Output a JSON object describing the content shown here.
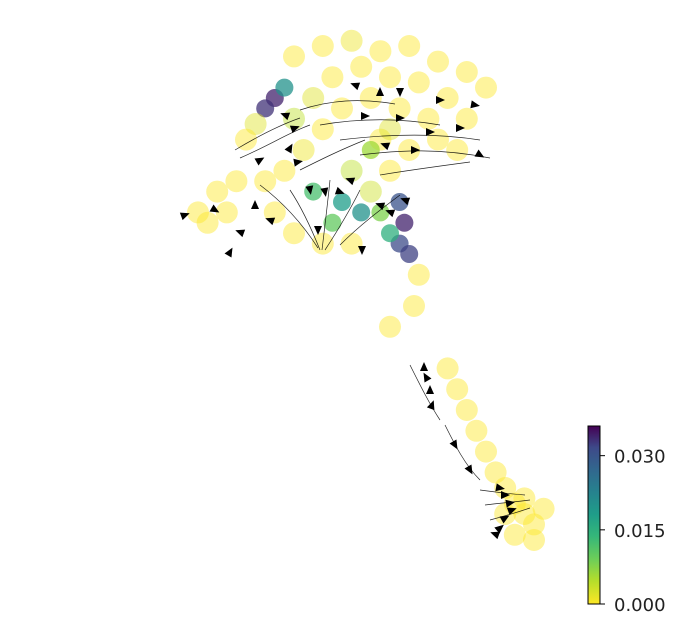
{
  "chart_data": {
    "type": "scatter",
    "title": "",
    "xlabel": "",
    "ylabel": "",
    "axes_visible": false,
    "grid": false,
    "description_of_overlay": "velocity streamlines with arrowheads",
    "colorbar": {
      "colormap": "viridis_r",
      "vmin": 0.0,
      "vmax": 0.036,
      "ticks": [
        0.0,
        0.015,
        0.03
      ],
      "tick_labels": [
        "0.000",
        "0.015",
        "0.030"
      ],
      "placement": "bottom-right"
    },
    "colors": {
      "low": "#fde725",
      "mid": "#21918c",
      "high": "#440154"
    },
    "clusters": [
      {
        "name": "upper",
        "points": [
          [
            0.3,
            0.88,
            0
          ],
          [
            0.36,
            0.9,
            0
          ],
          [
            0.42,
            0.91,
            0.001
          ],
          [
            0.48,
            0.89,
            0
          ],
          [
            0.54,
            0.9,
            0
          ],
          [
            0.6,
            0.87,
            0
          ],
          [
            0.66,
            0.85,
            0
          ],
          [
            0.7,
            0.82,
            0
          ],
          [
            0.26,
            0.8,
            0.034
          ],
          [
            0.24,
            0.78,
            0.033
          ],
          [
            0.28,
            0.82,
            0.02
          ],
          [
            0.22,
            0.75,
            0.002
          ],
          [
            0.2,
            0.72,
            0
          ],
          [
            0.3,
            0.76,
            0.004
          ],
          [
            0.34,
            0.8,
            0.002
          ],
          [
            0.38,
            0.84,
            0
          ],
          [
            0.44,
            0.86,
            0
          ],
          [
            0.5,
            0.84,
            0
          ],
          [
            0.56,
            0.83,
            0
          ],
          [
            0.62,
            0.8,
            0
          ],
          [
            0.66,
            0.76,
            0
          ],
          [
            0.58,
            0.76,
            0
          ],
          [
            0.52,
            0.78,
            0
          ],
          [
            0.46,
            0.8,
            0
          ],
          [
            0.4,
            0.78,
            0
          ],
          [
            0.36,
            0.74,
            0
          ],
          [
            0.32,
            0.7,
            0.001
          ],
          [
            0.28,
            0.66,
            0
          ],
          [
            0.24,
            0.64,
            0
          ],
          [
            0.34,
            0.62,
            0.012
          ],
          [
            0.4,
            0.6,
            0.018
          ],
          [
            0.44,
            0.58,
            0.02
          ],
          [
            0.38,
            0.56,
            0.01
          ],
          [
            0.46,
            0.62,
            0.003
          ],
          [
            0.5,
            0.66,
            0
          ],
          [
            0.48,
            0.72,
            0
          ],
          [
            0.54,
            0.7,
            0
          ],
          [
            0.6,
            0.72,
            0
          ],
          [
            0.64,
            0.7,
            0
          ],
          [
            0.52,
            0.6,
            0.03
          ],
          [
            0.53,
            0.56,
            0.034
          ],
          [
            0.52,
            0.52,
            0.031
          ],
          [
            0.5,
            0.54,
            0.015
          ],
          [
            0.48,
            0.58,
            0.008
          ],
          [
            0.54,
            0.5,
            0.032
          ],
          [
            0.42,
            0.52,
            0
          ],
          [
            0.36,
            0.52,
            0
          ],
          [
            0.3,
            0.54,
            0
          ],
          [
            0.26,
            0.58,
            0
          ],
          [
            0.18,
            0.64,
            0
          ],
          [
            0.14,
            0.62,
            0
          ],
          [
            0.1,
            0.58,
            0
          ],
          [
            0.12,
            0.56,
            0
          ],
          [
            0.16,
            0.58,
            0
          ],
          [
            0.46,
            0.7,
            0.006
          ],
          [
            0.5,
            0.74,
            0.002
          ],
          [
            0.42,
            0.66,
            0.004
          ],
          [
            0.56,
            0.46,
            0
          ],
          [
            0.55,
            0.4,
            0
          ],
          [
            0.5,
            0.36,
            0
          ]
        ]
      },
      {
        "name": "lower",
        "points": [
          [
            0.62,
            0.28,
            0
          ],
          [
            0.64,
            0.24,
            0
          ],
          [
            0.66,
            0.2,
            0
          ],
          [
            0.68,
            0.16,
            0
          ],
          [
            0.7,
            0.12,
            0
          ],
          [
            0.72,
            0.08,
            0
          ],
          [
            0.74,
            0.05,
            0
          ],
          [
            0.76,
            0.02,
            0
          ],
          [
            0.78,
            0.0,
            0
          ],
          [
            0.8,
            -0.02,
            0
          ],
          [
            0.76,
            -0.04,
            0
          ],
          [
            0.74,
            0.0,
            0
          ],
          [
            0.78,
            0.03,
            0
          ],
          [
            0.82,
            0.01,
            0
          ],
          [
            0.8,
            -0.05,
            0
          ]
        ]
      }
    ]
  }
}
